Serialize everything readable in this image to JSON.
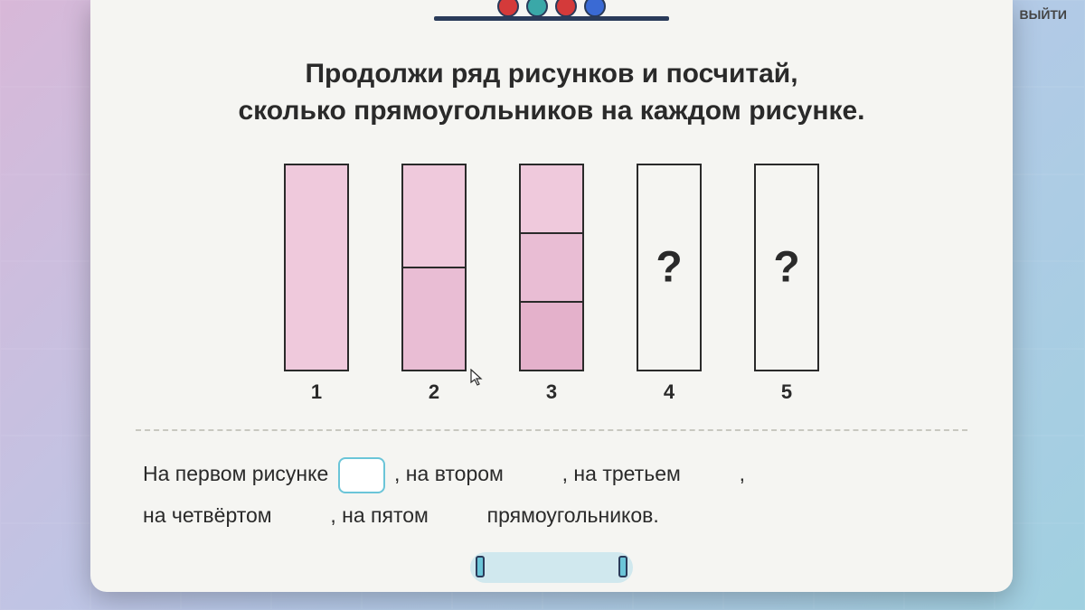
{
  "exit_label": "ВЫЙТИ",
  "headline_line1": "Продолжи ряд рисунков и посчитай,",
  "headline_line2": "сколько прямоугольников на каждом рисунке.",
  "rects": {
    "items": [
      {
        "label": "1",
        "segments": 1,
        "filled": true,
        "unknown": false
      },
      {
        "label": "2",
        "segments": 2,
        "filled": true,
        "unknown": false
      },
      {
        "label": "3",
        "segments": 3,
        "filled": true,
        "unknown": false
      },
      {
        "label": "4",
        "segments": 1,
        "filled": false,
        "unknown": true,
        "mark": "?"
      },
      {
        "label": "5",
        "segments": 1,
        "filled": false,
        "unknown": true,
        "mark": "?"
      }
    ],
    "fill_colors": [
      "#efc9dc",
      "#e9bdd4",
      "#e4b1cb"
    ],
    "border_color": "#2a2a2a"
  },
  "answer": {
    "t1": "На первом рисунке",
    "t2": ", на втором",
    "t3": ", на третьем",
    "t4": ",",
    "t5": "на четвёртом",
    "t6": ", на пятом",
    "t7": "прямоугольников."
  },
  "colors": {
    "card_bg": "#f5f5f2",
    "accent": "#6bc5d8",
    "text": "#2a2a2a",
    "divider": "#c8c8c0"
  }
}
